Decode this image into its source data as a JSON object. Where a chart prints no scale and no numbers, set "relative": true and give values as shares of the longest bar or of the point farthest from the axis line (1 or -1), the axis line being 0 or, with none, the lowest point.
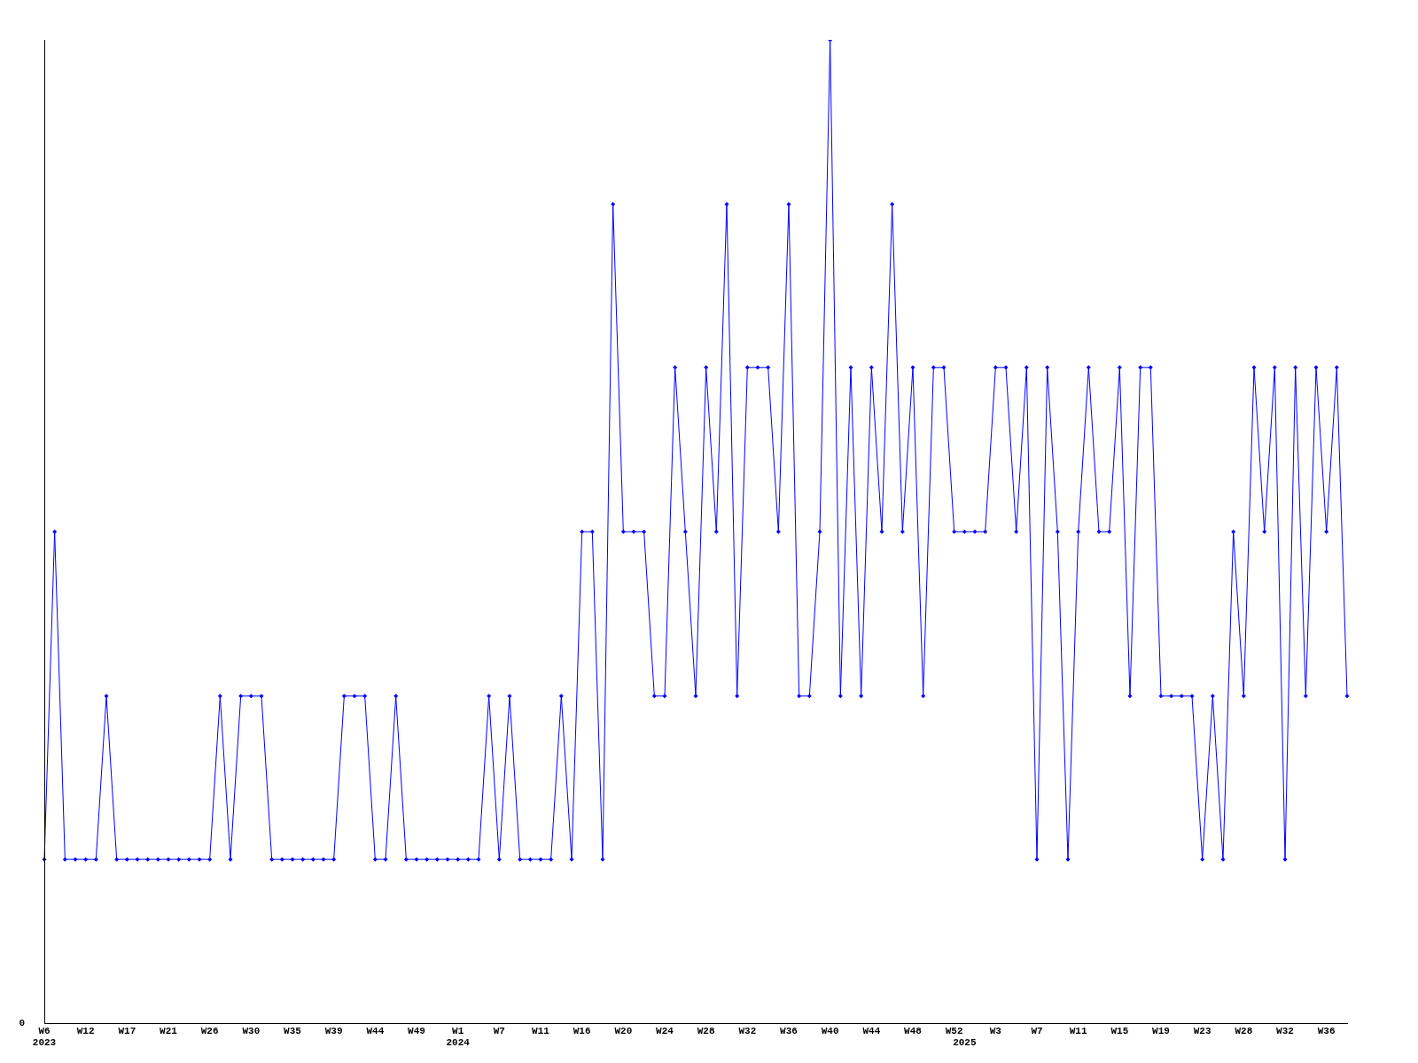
{
  "chart_data": {
    "type": "line",
    "relative": true,
    "color": "#0000ff",
    "marker": "diamond",
    "grid": false,
    "legend": false,
    "categories": [
      "W6\n2023",
      null,
      null,
      null,
      "W12",
      null,
      null,
      null,
      "W17",
      null,
      null,
      null,
      "W21",
      null,
      null,
      null,
      "W26",
      null,
      null,
      null,
      "W30",
      null,
      null,
      null,
      "W35",
      null,
      null,
      null,
      "W39",
      null,
      null,
      null,
      "W44",
      null,
      null,
      null,
      "W49",
      null,
      null,
      null,
      "W1\n2024",
      null,
      null,
      null,
      "W7",
      null,
      null,
      null,
      "W11",
      null,
      null,
      null,
      "W16",
      null,
      null,
      null,
      "W20",
      null,
      null,
      null,
      "W24",
      null,
      null,
      null,
      "W28",
      null,
      null,
      null,
      "W32",
      null,
      null,
      null,
      "W36",
      null,
      null,
      null,
      "W40",
      null,
      null,
      null,
      "W44",
      null,
      null,
      null,
      "W48",
      null,
      null,
      null,
      "W52",
      "\n2025",
      null,
      null,
      "W3",
      null,
      null,
      null,
      "W7",
      null,
      null,
      null,
      "W11",
      null,
      null,
      null,
      "W15",
      null,
      null,
      null,
      "W19",
      null,
      null,
      null,
      "W23",
      null,
      null,
      null,
      "W28",
      null,
      null,
      null,
      "W32",
      null,
      null,
      null,
      "W36",
      null,
      null
    ],
    "values": [
      0.167,
      0.5,
      0.167,
      0.167,
      0.167,
      0.167,
      0.333,
      0.167,
      0.167,
      0.167,
      0.167,
      0.167,
      0.167,
      0.167,
      0.167,
      0.167,
      0.167,
      0.333,
      0.167,
      0.333,
      0.333,
      0.333,
      0.167,
      0.167,
      0.167,
      0.167,
      0.167,
      0.167,
      0.167,
      0.333,
      0.333,
      0.333,
      0.167,
      0.167,
      0.333,
      0.167,
      0.167,
      0.167,
      0.167,
      0.167,
      0.167,
      0.167,
      0.167,
      0.333,
      0.167,
      0.333,
      0.167,
      0.167,
      0.167,
      0.167,
      0.333,
      0.167,
      0.5,
      0.5,
      0.167,
      0.833,
      0.5,
      0.5,
      0.5,
      0.333,
      0.333,
      0.667,
      0.5,
      0.333,
      0.667,
      0.5,
      0.833,
      0.333,
      0.667,
      0.667,
      0.667,
      0.5,
      0.833,
      0.333,
      0.333,
      0.5,
      1,
      0.333,
      0.667,
      0.333,
      0.667,
      0.5,
      0.833,
      0.5,
      0.667,
      0.333,
      0.667,
      0.667,
      0.5,
      0.5,
      0.5,
      0.5,
      0.667,
      0.667,
      0.5,
      0.667,
      0.167,
      0.667,
      0.5,
      0.167,
      0.5,
      0.667,
      0.5,
      0.5,
      0.667,
      0.333,
      0.667,
      0.667,
      0.333,
      0.333,
      0.333,
      0.333,
      0.167,
      0.333,
      0.167,
      0.5,
      0.333,
      0.667,
      0.5,
      0.667,
      0.167,
      0.667,
      0.333,
      0.667,
      0.5,
      0.667,
      0.333
    ],
    "annotations": [
      "0"
    ]
  }
}
